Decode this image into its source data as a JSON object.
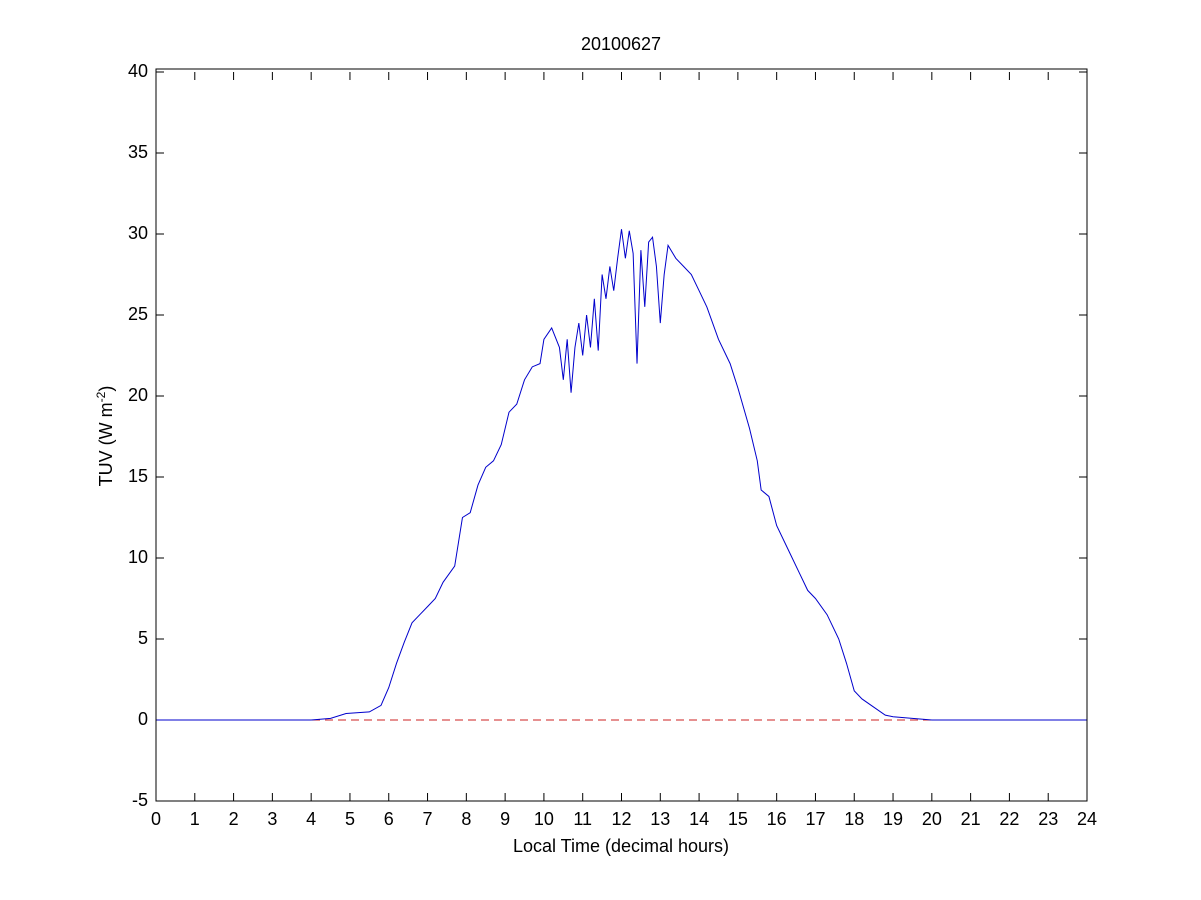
{
  "chart_data": {
    "type": "line",
    "title": "20100627",
    "xlabel": "Local Time (decimal hours)",
    "ylabel": {
      "text": "TUV (W m",
      "superscript": "-2",
      "suffix": ")"
    },
    "xlim": [
      0,
      24
    ],
    "xticks": [
      0,
      1,
      2,
      3,
      4,
      5,
      6,
      7,
      8,
      9,
      10,
      11,
      12,
      13,
      14,
      15,
      16,
      17,
      18,
      19,
      20,
      21,
      22,
      23,
      24
    ],
    "ylim": [
      -5,
      40
    ],
    "yticks": [
      -5,
      0,
      5,
      10,
      15,
      20,
      25,
      30,
      35,
      40
    ],
    "grid": false,
    "reference_line": {
      "value": 0,
      "color": "#cc2222",
      "dashed": true
    },
    "series": [
      {
        "color": "#0000cc",
        "x": [
          0,
          4,
          4.5,
          4.9,
          5.5,
          5.8,
          6.0,
          6.2,
          6.4,
          6.6,
          6.8,
          7.0,
          7.2,
          7.4,
          7.7,
          7.9,
          8.1,
          8.3,
          8.5,
          8.7,
          8.9,
          9.1,
          9.3,
          9.5,
          9.7,
          9.9,
          10.0,
          10.2,
          10.4,
          10.5,
          10.6,
          10.7,
          10.8,
          10.9,
          11.0,
          11.1,
          11.2,
          11.3,
          11.4,
          11.5,
          11.6,
          11.7,
          11.8,
          11.9,
          12.0,
          12.1,
          12.2,
          12.3,
          12.4,
          12.5,
          12.6,
          12.7,
          12.8,
          12.9,
          13.0,
          13.1,
          13.2,
          13.4,
          13.6,
          13.8,
          14.0,
          14.2,
          14.5,
          14.8,
          15.0,
          15.3,
          15.5,
          15.6,
          15.8,
          16.0,
          16.3,
          16.6,
          16.8,
          17.0,
          17.3,
          17.6,
          17.8,
          18.0,
          18.2,
          18.5,
          18.8,
          19.0,
          19.5,
          20.0,
          24
        ],
        "values": [
          0,
          0,
          0.1,
          0.4,
          0.5,
          0.9,
          2.0,
          3.5,
          4.8,
          6.0,
          6.5,
          7.0,
          7.5,
          8.5,
          9.5,
          12.5,
          12.8,
          14.5,
          15.6,
          16.0,
          17.0,
          19.0,
          19.5,
          21.0,
          21.8,
          22.0,
          23.5,
          24.2,
          23.0,
          21.0,
          23.5,
          20.2,
          23.0,
          24.5,
          22.5,
          25.0,
          23.0,
          26.0,
          22.8,
          27.5,
          26.0,
          28.0,
          26.5,
          28.5,
          30.3,
          28.5,
          30.2,
          28.8,
          22.0,
          29.0,
          25.5,
          29.5,
          29.8,
          28.0,
          24.5,
          27.5,
          29.3,
          28.5,
          28.0,
          27.5,
          26.5,
          25.5,
          23.5,
          22.0,
          20.5,
          18.0,
          16.0,
          14.2,
          13.8,
          12.0,
          10.5,
          9.0,
          8.0,
          7.5,
          6.5,
          5.0,
          3.5,
          1.8,
          1.3,
          0.8,
          0.3,
          0.2,
          0.1,
          0,
          0
        ]
      }
    ]
  }
}
